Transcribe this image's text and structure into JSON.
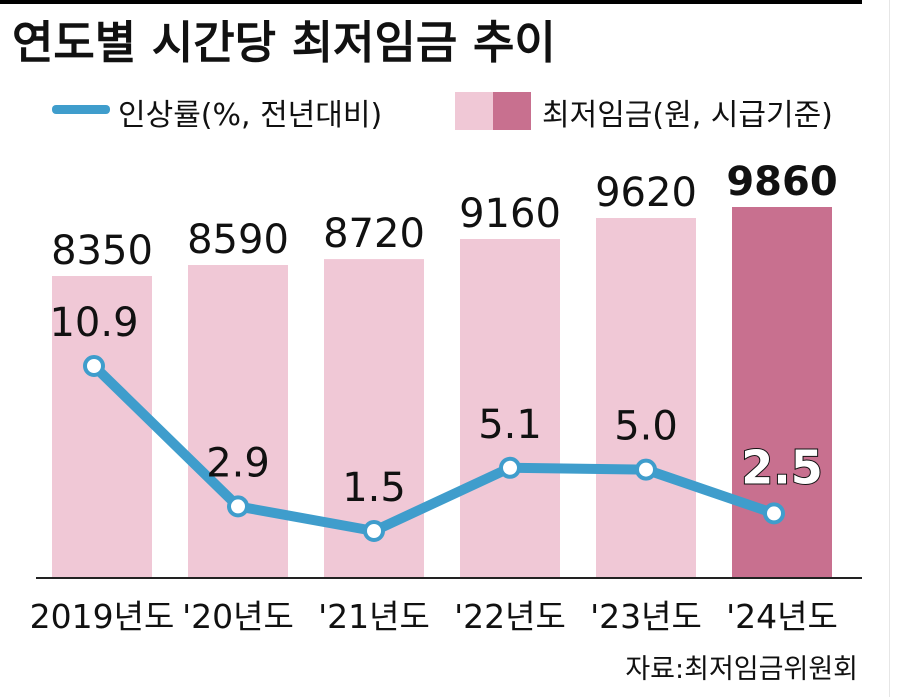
{
  "colors": {
    "bar_light": "#f0c8d6",
    "bar_highlight": "#c8708f",
    "line": "#3f9dcc",
    "marker_fill": "#ffffff",
    "text": "#111111",
    "axis": "#222222",
    "highlight_rate_label_fill": "#ffffff",
    "highlight_rate_label_stroke": "#111111"
  },
  "chart_data": {
    "type": "bar",
    "title": "연도별 시간당 최저임금 추이",
    "categories": [
      "2019년도",
      "'20년도",
      "'21년도",
      "'22년도",
      "'23년도",
      "'24년도"
    ],
    "series": [
      {
        "name": "최저임금(원, 시급기준)",
        "type": "bar",
        "values": [
          8350,
          8590,
          8720,
          9160,
          9620,
          9860
        ],
        "value_labels": [
          "8350",
          "8590",
          "8720",
          "9160",
          "9620",
          "9860"
        ],
        "highlight_index": 5
      },
      {
        "name": "인상률(%, 전년대비)",
        "type": "line",
        "values": [
          10.9,
          2.9,
          1.5,
          5.1,
          5.0,
          2.5
        ],
        "value_labels": [
          "10.9",
          "2.9",
          "1.5",
          "5.1",
          "5.0",
          "2.5"
        ]
      }
    ],
    "legend": [
      {
        "label": "인상률(%, 전년대비)",
        "kind": "line"
      },
      {
        "label": "최저임금(원, 시급기준)",
        "kind": "bar"
      }
    ],
    "legend_position": "top",
    "grid": false,
    "source": "자료:최저임금위원회"
  }
}
